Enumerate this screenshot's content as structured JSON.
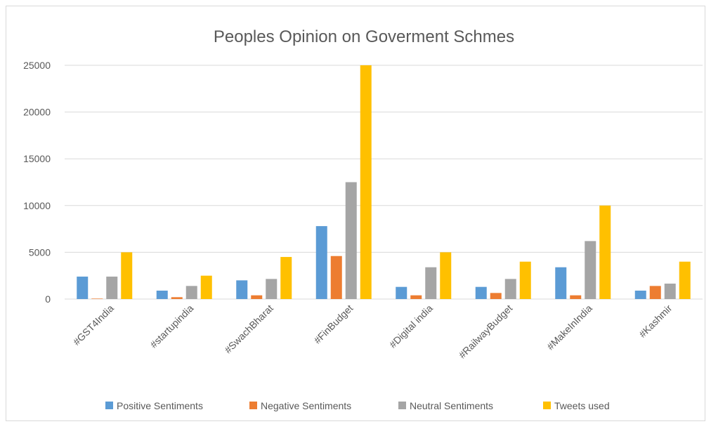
{
  "chart_data": {
    "type": "bar",
    "title": "Peoples Opinion on Goverment Schmes",
    "xlabel": "",
    "ylabel": "",
    "categories": [
      "#GST4India",
      "#startupindia",
      "#SwachBharat",
      "#FinBudget",
      "#Digital india",
      "#RailwayBudget",
      "#MakeInIndia",
      "#Kashmir"
    ],
    "series": [
      {
        "name": "Positive Sentiments",
        "color": "#5b9bd5",
        "values": [
          2400,
          900,
          2000,
          7800,
          1300,
          1300,
          3400,
          900
        ]
      },
      {
        "name": "Negative Sentiments",
        "color": "#ed7d31",
        "values": [
          50,
          200,
          400,
          4600,
          400,
          650,
          400,
          1400
        ]
      },
      {
        "name": "Neutral Sentiments",
        "color": "#a5a5a5",
        "values": [
          2400,
          1400,
          2150,
          12500,
          3400,
          2150,
          6200,
          1650
        ]
      },
      {
        "name": "Tweets used",
        "color": "#ffc000",
        "values": [
          5000,
          2500,
          4500,
          25000,
          5000,
          4000,
          10000,
          4000
        ]
      }
    ],
    "ylim": [
      0,
      25000
    ],
    "yticks": [
      0,
      5000,
      10000,
      15000,
      20000,
      25000
    ],
    "grid": true,
    "legend": "bottom"
  }
}
